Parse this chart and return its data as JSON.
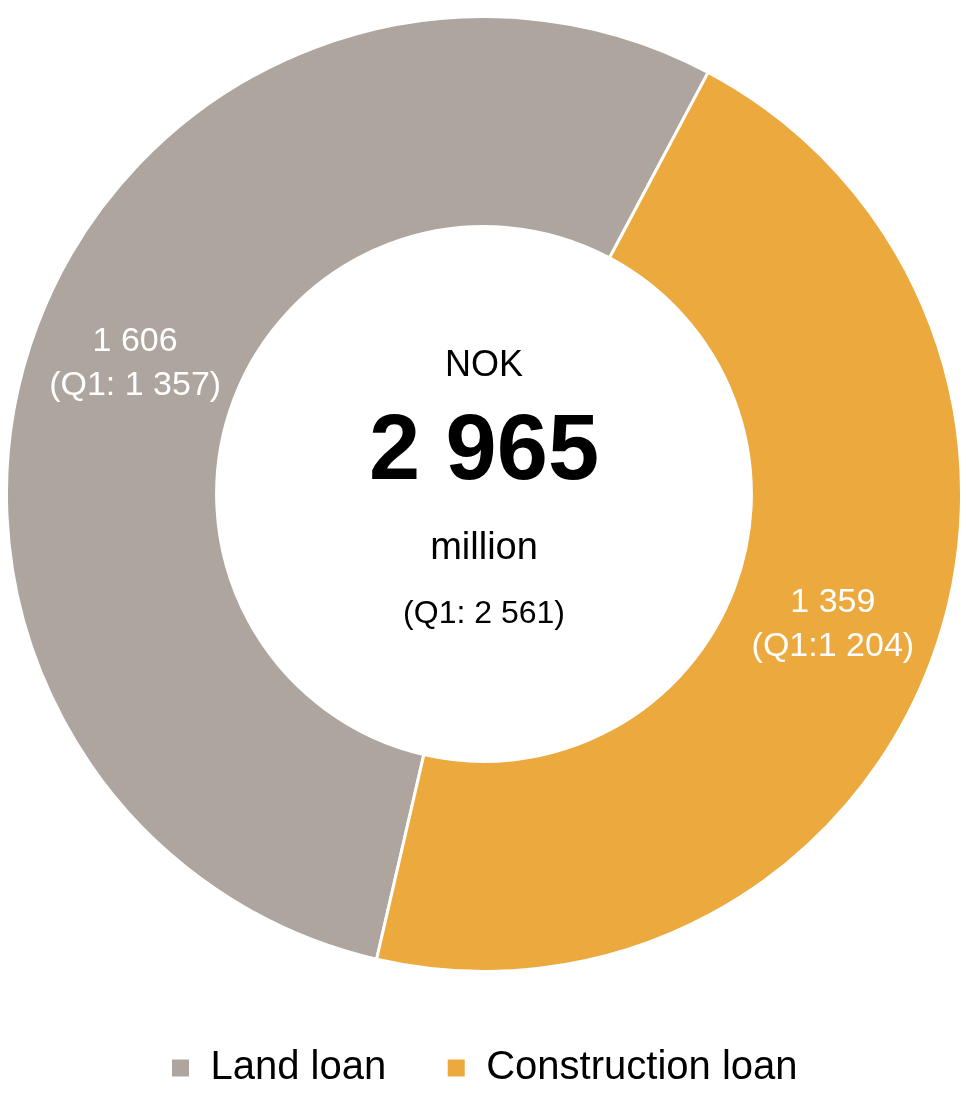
{
  "chart_data": {
    "type": "donut",
    "categories": [
      "Land loan",
      "Construction loan"
    ],
    "values": [
      1606,
      1359
    ],
    "colors": [
      "#ada59e",
      "#eba93e"
    ],
    "value_labels": [
      "1 606",
      "1 359"
    ],
    "annotations": [
      {
        "text": "(Q1: 1 357)",
        "x": "Land loan"
      },
      {
        "text": "(Q1:1 204)",
        "x": "Construction loan"
      },
      "NOK",
      "2 965",
      "million",
      "(Q1: 2 561)"
    ],
    "legend": "bottom"
  }
}
